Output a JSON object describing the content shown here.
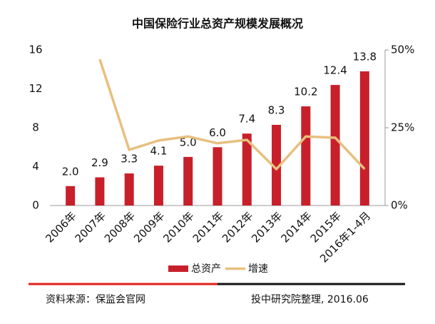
{
  "chart_data": {
    "type": "bar",
    "title": "中国保险行业总资产规模发展概况",
    "categories": [
      "2006年",
      "2007年",
      "2008年",
      "2009年",
      "2010年",
      "2011年",
      "2012年",
      "2013年",
      "2014年",
      "2015年",
      "2016年1-4月"
    ],
    "series": [
      {
        "name": "总资产",
        "type": "bar",
        "color": "#c8202a",
        "values": [
          2.0,
          2.9,
          3.3,
          4.1,
          5.0,
          6.0,
          7.4,
          8.3,
          10.2,
          12.4,
          13.8
        ],
        "value_labels": [
          "2.0",
          "2.9",
          "3.3",
          "4.1",
          "5.0",
          "6.0",
          "7.4",
          "8.3",
          "10.2",
          "12.4",
          "13.8"
        ]
      },
      {
        "name": "增速",
        "type": "line",
        "axis": "y2",
        "color": "#e8bf7f",
        "values": [
          null,
          47,
          17.9,
          20.9,
          22.2,
          20,
          21.1,
          11.7,
          22.2,
          21.8,
          11.7
        ]
      }
    ],
    "ylim": [
      0,
      16
    ],
    "yticks": [
      0,
      4,
      8,
      12,
      16
    ],
    "y2lim": [
      0,
      50
    ],
    "y2ticks": [
      {
        "value": 0,
        "label": "0%"
      },
      {
        "value": 25,
        "label": "25%"
      },
      {
        "value": 50,
        "label": "50%"
      }
    ],
    "legend": "bottom"
  },
  "footer": {
    "source": "资料来源：保监会官网",
    "note": "投中研究院整理, 2016.06"
  }
}
